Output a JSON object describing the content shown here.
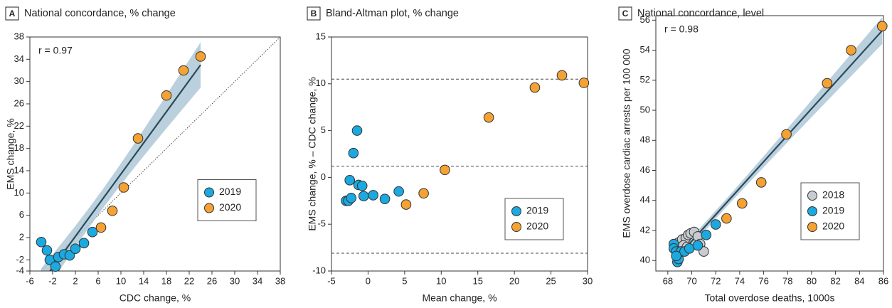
{
  "chart_data": [
    {
      "type": "scatter",
      "panel_label": "A",
      "title": "National concordance, % change",
      "x_label": "CDC change, %",
      "y_label": "EMS change, %",
      "annotation": "r = 0.97",
      "xlim": [
        -6,
        38
      ],
      "ylim": [
        -4,
        38
      ],
      "xticks": [
        -6,
        -2,
        2,
        6,
        10,
        14,
        18,
        22,
        26,
        30,
        34,
        38
      ],
      "yticks": [
        -4,
        -2,
        2,
        6,
        10,
        14,
        18,
        22,
        26,
        30,
        34,
        38
      ],
      "fit_line": true,
      "identity_line": true,
      "legend": "center right",
      "series": [
        {
          "name": "2019",
          "color": "#1ba9e0",
          "x": [
            -4,
            -3,
            -2.5,
            -1.5,
            -1,
            0,
            1,
            2,
            3.5,
            5
          ],
          "values": [
            1.2,
            -0.3,
            -2,
            -3.2,
            -1.5,
            -1,
            -1.2,
            0,
            1,
            3
          ]
        },
        {
          "name": "2020",
          "color": "#f4a233",
          "x": [
            6.5,
            8.5,
            10.5,
            13,
            18,
            21,
            24
          ],
          "values": [
            3.8,
            6.8,
            11,
            19.8,
            27.5,
            32,
            34.5
          ]
        }
      ]
    },
    {
      "type": "scatter",
      "panel_label": "B",
      "title": "Bland-Altman plot, % change",
      "x_label": "Mean change, %",
      "y_label": "EMS change, % – CDC change, %",
      "xlim": [
        -5,
        30
      ],
      "ylim": [
        -10,
        15
      ],
      "xticks": [
        -5,
        0,
        5,
        10,
        15,
        20,
        25,
        30
      ],
      "yticks": [
        -10,
        -5,
        0,
        5,
        10,
        15
      ],
      "reference_lines": [
        10.5,
        1.2,
        -8.1
      ],
      "legend": "lower right",
      "series": [
        {
          "name": "2019",
          "color": "#1ba9e0",
          "x": [
            -3,
            -2.7,
            -2.5,
            -2.3,
            -2,
            -1.5,
            -1.3,
            -0.8,
            -0.6,
            0.7,
            2.3,
            4.2
          ],
          "values": [
            -2.5,
            -2.5,
            -0.3,
            -2.2,
            2.6,
            5,
            -0.8,
            -0.9,
            -2,
            -1.9,
            -2.3,
            -1.5
          ]
        },
        {
          "name": "2020",
          "color": "#f4a233",
          "x": [
            5.2,
            7.6,
            10.5,
            16.5,
            22.8,
            26.5,
            29.5
          ],
          "values": [
            -2.9,
            -1.7,
            0.8,
            6.4,
            9.6,
            10.9,
            10.1
          ]
        }
      ]
    },
    {
      "type": "scatter",
      "panel_label": "C",
      "title": "National concordance, level",
      "x_label": "Total overdose deaths, 1000s",
      "y_label": "EMS overdose cardiac arrests per 100 000",
      "annotation": "r = 0.98",
      "xlim": [
        67,
        86
      ],
      "ylim": [
        39.3,
        56.3
      ],
      "xticks": [
        68,
        70,
        72,
        74,
        76,
        78,
        80,
        82,
        84,
        86
      ],
      "yticks": [
        40,
        42,
        44,
        46,
        48,
        50,
        52,
        54,
        56
      ],
      "fit_line": true,
      "legend": "lower right",
      "series": [
        {
          "name": "2018",
          "color": "#c8ccd0",
          "x": [
            68.9,
            69.2,
            69.5,
            69.7,
            69.9,
            70.2,
            70.5,
            70.7,
            71,
            69.3,
            69.6
          ],
          "values": [
            41.2,
            41.4,
            41.5,
            41.7,
            41.8,
            41.9,
            41.6,
            41.1,
            40.6,
            41,
            40.9
          ]
        },
        {
          "name": "2019",
          "color": "#1ba9e0",
          "x": [
            68.5,
            68.5,
            68.7,
            68.8,
            68.9,
            69.1,
            69.4,
            69.8,
            70.5,
            71.2,
            72,
            68.7
          ],
          "values": [
            41.1,
            40.8,
            40.6,
            39.9,
            40.1,
            40.6,
            40.6,
            40.8,
            41,
            41.7,
            42.4,
            40.3
          ]
        },
        {
          "name": "2020",
          "color": "#f4a233",
          "x": [
            72.9,
            74.2,
            75.8,
            77.9,
            81.3,
            83.3,
            85.9
          ],
          "values": [
            42.8,
            43.8,
            45.2,
            48.4,
            51.8,
            54,
            55.6
          ]
        }
      ]
    }
  ]
}
